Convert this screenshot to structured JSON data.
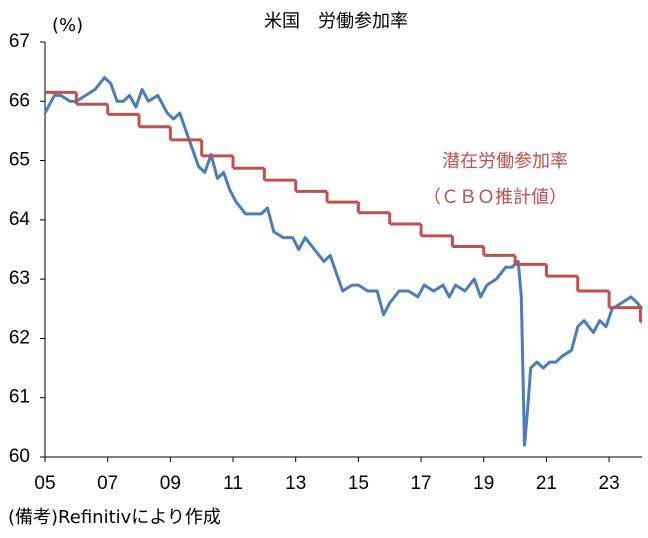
{
  "chart_data": {
    "type": "line",
    "title": "米国　労働参加率",
    "y_label": "(%)",
    "source": "(備考)Refinitivにより作成",
    "annotation": "（ＣＢＯ推計値）",
    "xlim": [
      2005,
      2024.05
    ],
    "ylim": [
      60,
      67
    ],
    "yticks": [
      60,
      61,
      62,
      63,
      64,
      65,
      66,
      67
    ],
    "xticks": [
      {
        "value": 2005,
        "label": "05"
      },
      {
        "value": 2007,
        "label": "07"
      },
      {
        "value": 2009,
        "label": "09"
      },
      {
        "value": 2011,
        "label": "11"
      },
      {
        "value": 2013,
        "label": "13"
      },
      {
        "value": 2015,
        "label": "15"
      },
      {
        "value": 2017,
        "label": "17"
      },
      {
        "value": 2019,
        "label": "19"
      },
      {
        "value": 2021,
        "label": "21"
      },
      {
        "value": 2023,
        "label": "23"
      }
    ],
    "series": [
      {
        "color": "#4a7ebb",
        "step": false,
        "x": [
          2005.0,
          2005.1,
          2005.3,
          2005.5,
          2005.8,
          2006.0,
          2006.3,
          2006.6,
          2006.9,
          2007.1,
          2007.3,
          2007.5,
          2007.7,
          2007.9,
          2008.1,
          2008.3,
          2008.6,
          2008.9,
          2009.1,
          2009.3,
          2009.5,
          2009.7,
          2009.9,
          2010.1,
          2010.3,
          2010.5,
          2010.7,
          2010.9,
          2011.1,
          2011.4,
          2011.7,
          2011.9,
          2012.1,
          2012.3,
          2012.6,
          2012.9,
          2013.1,
          2013.3,
          2013.6,
          2013.9,
          2014.1,
          2014.3,
          2014.5,
          2014.8,
          2015.0,
          2015.3,
          2015.6,
          2015.8,
          2016.0,
          2016.3,
          2016.6,
          2016.9,
          2017.1,
          2017.4,
          2017.7,
          2017.9,
          2018.1,
          2018.4,
          2018.7,
          2018.9,
          2019.1,
          2019.4,
          2019.7,
          2019.9,
          2020.1,
          2020.2,
          2020.3,
          2020.4,
          2020.5,
          2020.7,
          2020.9,
          2021.1,
          2021.3,
          2021.5,
          2021.8,
          2022.0,
          2022.2,
          2022.5,
          2022.7,
          2022.9,
          2023.1,
          2023.4,
          2023.7,
          2023.9,
          2024.05
        ],
        "values": [
          65.8,
          65.9,
          66.1,
          66.1,
          66.0,
          66.0,
          66.1,
          66.2,
          66.4,
          66.3,
          66.0,
          66.0,
          66.1,
          65.9,
          66.2,
          66.0,
          66.1,
          65.8,
          65.7,
          65.8,
          65.5,
          65.2,
          64.9,
          64.8,
          65.1,
          64.7,
          64.8,
          64.5,
          64.3,
          64.1,
          64.1,
          64.1,
          64.2,
          63.8,
          63.7,
          63.7,
          63.5,
          63.7,
          63.5,
          63.3,
          63.4,
          63.1,
          62.8,
          62.9,
          62.9,
          62.8,
          62.8,
          62.4,
          62.6,
          62.8,
          62.8,
          62.7,
          62.9,
          62.8,
          62.9,
          62.7,
          62.9,
          62.8,
          63.0,
          62.7,
          62.9,
          63.0,
          63.2,
          63.2,
          63.3,
          62.7,
          60.2,
          60.8,
          61.5,
          61.6,
          61.5,
          61.6,
          61.6,
          61.7,
          61.8,
          62.2,
          62.3,
          62.1,
          62.3,
          62.2,
          62.5,
          62.6,
          62.7,
          62.6,
          62.5
        ]
      },
      {
        "name": "潜在労働参加率",
        "color": "#c0504d",
        "step": true,
        "x": [
          2005,
          2006,
          2007,
          2008,
          2009,
          2010,
          2011,
          2012,
          2013,
          2014,
          2015,
          2016,
          2017,
          2018,
          2019,
          2020,
          2021,
          2022,
          2023,
          2024
        ],
        "values": [
          66.15,
          65.95,
          65.78,
          65.57,
          65.35,
          65.08,
          64.87,
          64.67,
          64.48,
          64.3,
          64.12,
          63.93,
          63.73,
          63.55,
          63.4,
          63.25,
          63.05,
          62.8,
          62.52,
          62.28
        ]
      }
    ]
  }
}
